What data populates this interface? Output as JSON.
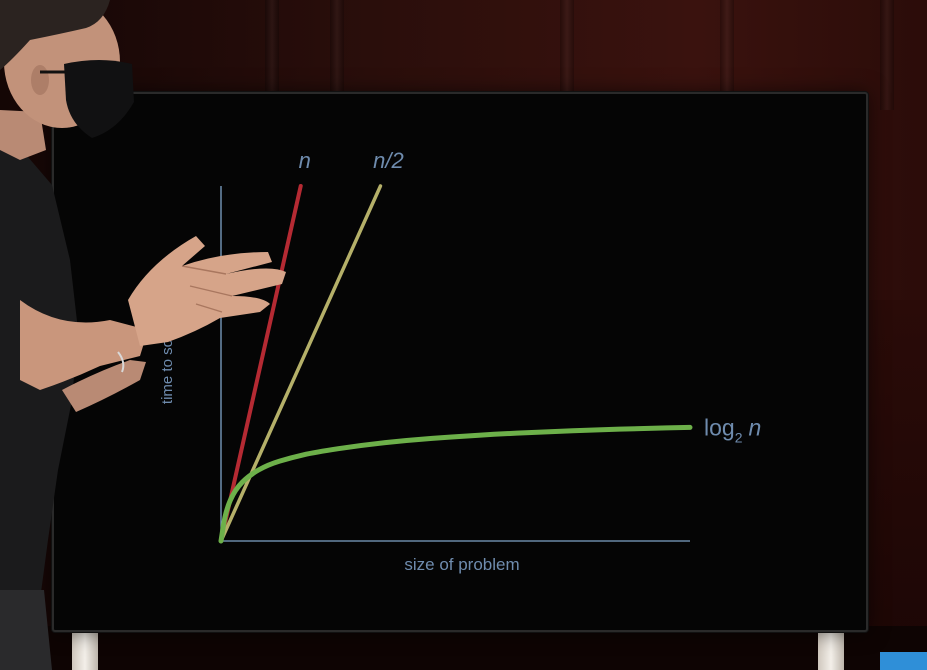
{
  "scene": {
    "colors": {
      "background": "#050505",
      "axis": "#7fa3c8",
      "linear": "#b52a33",
      "half": "#b5b069",
      "log": "#6db04a",
      "label": "#6f8cae"
    }
  },
  "chart_data": {
    "type": "line",
    "xlabel": "size of problem",
    "ylabel": "time to solve",
    "grid": false,
    "xlim": [
      0,
      100
    ],
    "ylim": [
      0,
      100
    ],
    "series": [
      {
        "name": "n",
        "label": "n",
        "x": [
          0,
          17
        ],
        "y": [
          0,
          100
        ]
      },
      {
        "name": "n/2",
        "label": "n/2",
        "x": [
          0,
          34
        ],
        "y": [
          0,
          100
        ]
      },
      {
        "name": "log2 n",
        "label_main": "log",
        "label_sub": "2",
        "label_var": "n",
        "x": [
          0,
          1,
          3,
          6,
          10,
          15,
          20,
          30,
          40,
          50,
          60,
          70,
          80,
          90,
          100
        ],
        "y": [
          0,
          8.5,
          14.5,
          18.5,
          21.5,
          23.5,
          25,
          27,
          28.4,
          29.4,
          30.2,
          30.8,
          31.3,
          31.7,
          32
        ]
      }
    ]
  }
}
